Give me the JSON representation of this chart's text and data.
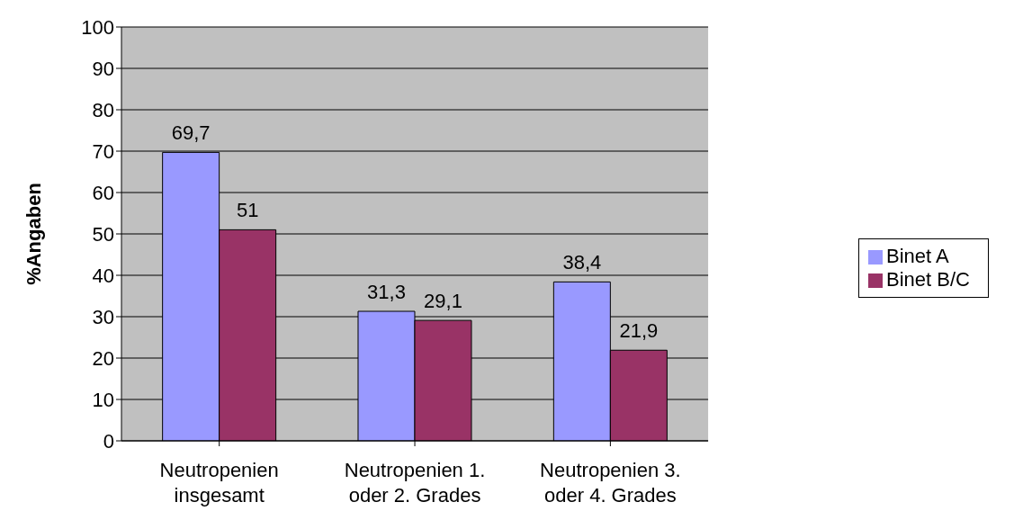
{
  "chart_data": {
    "type": "bar",
    "ylabel": "%Angaben",
    "categories": [
      "Neutropenien\ninsgesamt",
      "Neutropenien 1.\noder 2. Grades",
      "Neutropenien 3.\noder 4. Grades"
    ],
    "series": [
      {
        "name": "Binet A",
        "color": "#9999ff",
        "values": [
          69.7,
          31.3,
          38.4
        ],
        "value_labels": [
          "69,7",
          "31,3",
          "38,4"
        ]
      },
      {
        "name": "Binet B/C",
        "color": "#993366",
        "values": [
          51,
          29.1,
          21.9
        ],
        "value_labels": [
          "51",
          "29,1",
          "21,9"
        ]
      }
    ],
    "ylim": [
      0,
      100
    ],
    "yticks": [
      0,
      10,
      20,
      30,
      40,
      50,
      60,
      70,
      80,
      90,
      100
    ],
    "grid": "y",
    "legend": "right"
  }
}
